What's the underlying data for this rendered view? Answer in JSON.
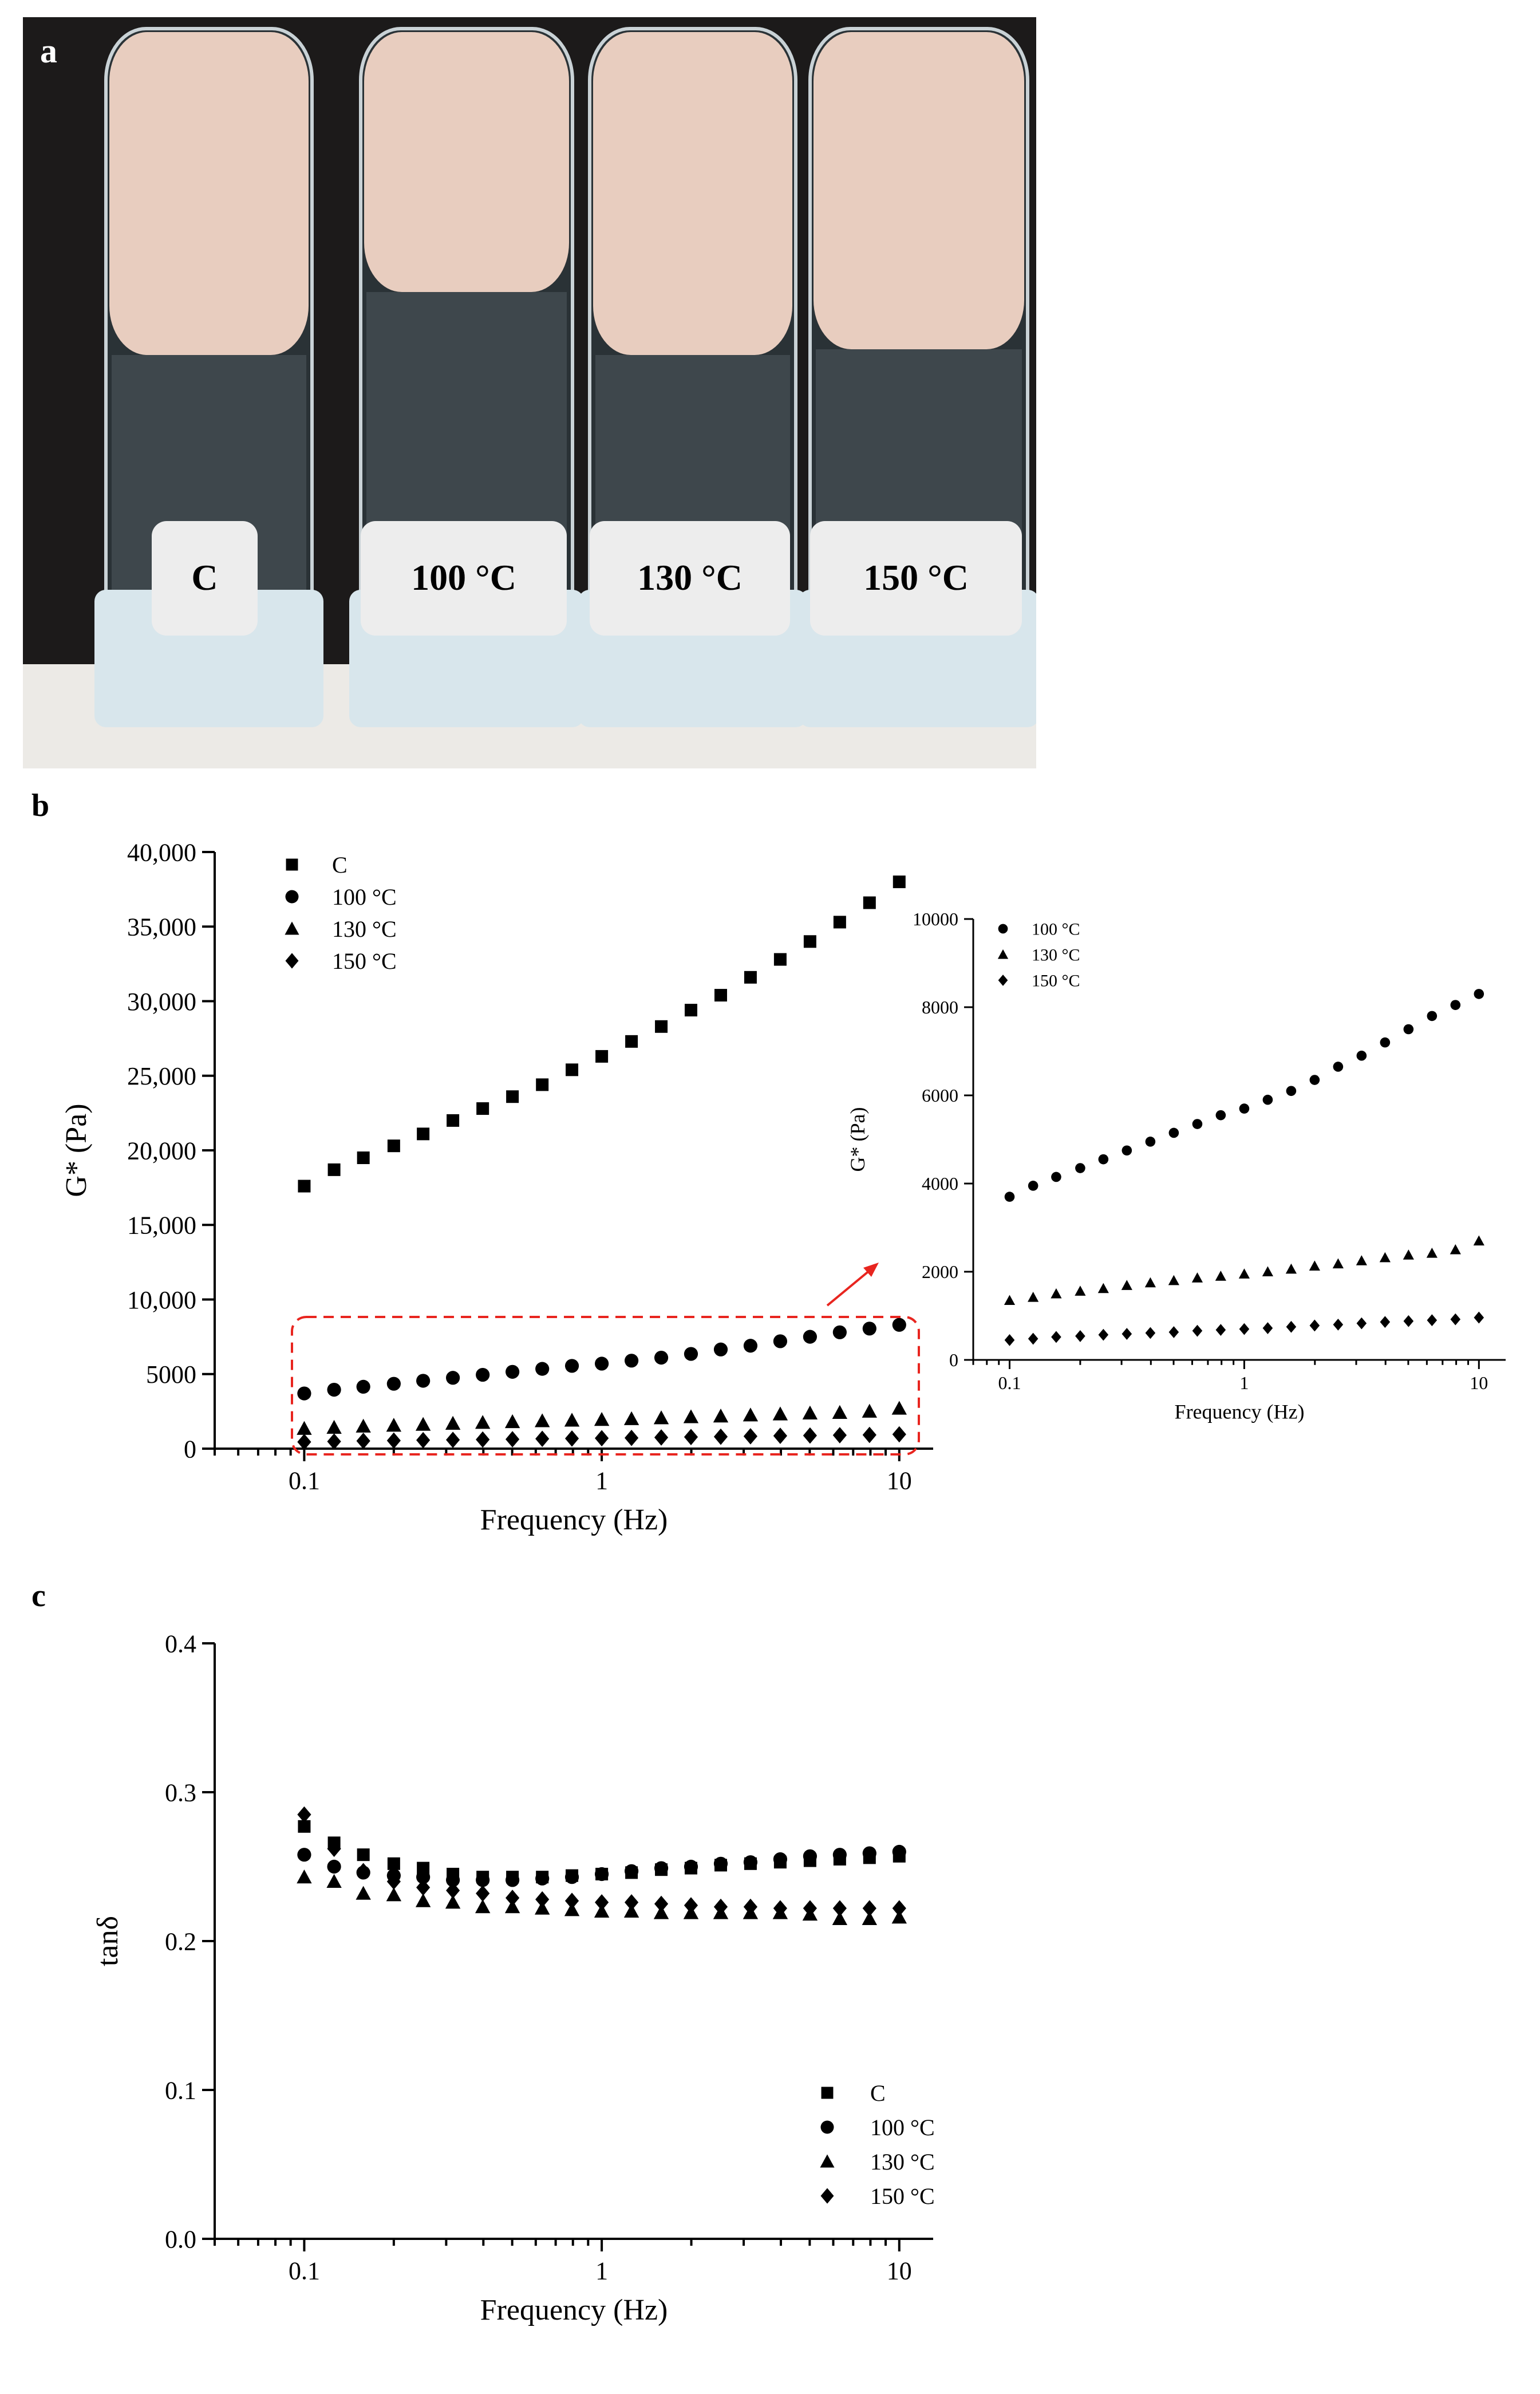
{
  "panels": {
    "a": "a",
    "b": "b",
    "c": "c"
  },
  "photo": {
    "tube_labels": [
      "C",
      "100 °C",
      "130 °C",
      "150 °C"
    ],
    "background": "#1a1a1a",
    "foam_color": "#e8cdbf",
    "cap_color": "#d8e6ec"
  },
  "chart_data": [
    {
      "id": "b-main",
      "type": "scatter",
      "xscale": "log",
      "xlim": [
        0.05,
        13
      ],
      "ylim": [
        0,
        40000
      ],
      "xticks": [
        {
          "v": 0.1,
          "label": "0.1"
        },
        {
          "v": 1,
          "label": "1"
        },
        {
          "v": 10,
          "label": "10"
        }
      ],
      "yticks": [
        {
          "v": 0,
          "label": "0"
        },
        {
          "v": 5000,
          "label": "5000"
        },
        {
          "v": 10000,
          "label": "10,000"
        },
        {
          "v": 15000,
          "label": "15,000"
        },
        {
          "v": 20000,
          "label": "20,000"
        },
        {
          "v": 25000,
          "label": "25,000"
        },
        {
          "v": 30000,
          "label": "30,000"
        },
        {
          "v": 35000,
          "label": "35,000"
        },
        {
          "v": 40000,
          "label": "40,000"
        }
      ],
      "xlabel": "Frequency (Hz)",
      "ylabel": "G* (Pa)",
      "legend_position": "top-left",
      "x": [
        0.1,
        0.126,
        0.158,
        0.2,
        0.251,
        0.316,
        0.398,
        0.501,
        0.631,
        0.794,
        1.0,
        1.259,
        1.585,
        1.995,
        2.512,
        3.162,
        3.981,
        5.012,
        6.31,
        7.943,
        10.0
      ],
      "series": [
        {
          "name": "C",
          "marker": "square",
          "values": [
            17600,
            18700,
            19500,
            20300,
            21100,
            22000,
            22800,
            23600,
            24400,
            25400,
            26300,
            27300,
            28300,
            29400,
            30400,
            31600,
            32800,
            34000,
            35300,
            36600,
            38000
          ]
        },
        {
          "name": "100 °C",
          "marker": "circle",
          "values": [
            3700,
            3950,
            4150,
            4350,
            4550,
            4750,
            4950,
            5150,
            5350,
            5550,
            5700,
            5900,
            6100,
            6350,
            6650,
            6900,
            7200,
            7500,
            7800,
            8050,
            8300
          ]
        },
        {
          "name": "130 °C",
          "marker": "triangle",
          "values": [
            1350,
            1420,
            1500,
            1560,
            1620,
            1690,
            1750,
            1800,
            1860,
            1900,
            1950,
            2000,
            2060,
            2130,
            2180,
            2250,
            2320,
            2380,
            2420,
            2500,
            2700
          ]
        },
        {
          "name": "150 °C",
          "marker": "diamond",
          "values": [
            450,
            480,
            520,
            540,
            570,
            590,
            610,
            630,
            660,
            680,
            700,
            720,
            750,
            780,
            800,
            830,
            860,
            880,
            900,
            920,
            960
          ]
        }
      ]
    },
    {
      "id": "b-inset",
      "type": "scatter",
      "xscale": "log",
      "xlim": [
        0.07,
        13
      ],
      "ylim": [
        0,
        10000
      ],
      "xticks": [
        {
          "v": 0.1,
          "label": "0.1"
        },
        {
          "v": 1,
          "label": "1"
        },
        {
          "v": 10,
          "label": "10"
        }
      ],
      "yticks": [
        {
          "v": 0,
          "label": "0"
        },
        {
          "v": 2000,
          "label": "2000"
        },
        {
          "v": 4000,
          "label": "4000"
        },
        {
          "v": 6000,
          "label": "6000"
        },
        {
          "v": 8000,
          "label": "8000"
        },
        {
          "v": 10000,
          "label": "10000"
        }
      ],
      "xlabel": "Frequency (Hz)",
      "ylabel": "G* (Pa)",
      "legend_position": "top-left",
      "x": [
        0.1,
        0.126,
        0.158,
        0.2,
        0.251,
        0.316,
        0.398,
        0.501,
        0.631,
        0.794,
        1.0,
        1.259,
        1.585,
        1.995,
        2.512,
        3.162,
        3.981,
        5.012,
        6.31,
        7.943,
        10.0
      ],
      "series": [
        {
          "name": "100 °C",
          "marker": "circle",
          "values": [
            3700,
            3950,
            4150,
            4350,
            4550,
            4750,
            4950,
            5150,
            5350,
            5550,
            5700,
            5900,
            6100,
            6350,
            6650,
            6900,
            7200,
            7500,
            7800,
            8050,
            8300
          ]
        },
        {
          "name": "130 °C",
          "marker": "triangle",
          "values": [
            1350,
            1420,
            1500,
            1560,
            1620,
            1690,
            1750,
            1800,
            1860,
            1900,
            1950,
            2000,
            2060,
            2130,
            2180,
            2250,
            2320,
            2380,
            2420,
            2500,
            2700
          ]
        },
        {
          "name": "150 °C",
          "marker": "diamond",
          "values": [
            450,
            480,
            520,
            540,
            570,
            590,
            610,
            630,
            660,
            680,
            700,
            720,
            750,
            780,
            800,
            830,
            860,
            880,
            900,
            920,
            960
          ]
        }
      ]
    },
    {
      "id": "c",
      "type": "scatter",
      "xscale": "log",
      "xlim": [
        0.05,
        13
      ],
      "ylim": [
        0,
        0.4
      ],
      "xticks": [
        {
          "v": 0.1,
          "label": "0.1"
        },
        {
          "v": 1,
          "label": "1"
        },
        {
          "v": 10,
          "label": "10"
        }
      ],
      "yticks": [
        {
          "v": 0,
          "label": "0.0"
        },
        {
          "v": 0.1,
          "label": "0.1"
        },
        {
          "v": 0.2,
          "label": "0.2"
        },
        {
          "v": 0.3,
          "label": "0.3"
        },
        {
          "v": 0.4,
          "label": "0.4"
        }
      ],
      "xlabel": "Frequency (Hz)",
      "ylabel": "tanδ",
      "legend_position": "bottom-right",
      "x": [
        0.1,
        0.126,
        0.158,
        0.2,
        0.251,
        0.316,
        0.398,
        0.501,
        0.631,
        0.794,
        1.0,
        1.259,
        1.585,
        1.995,
        2.512,
        3.162,
        3.981,
        5.012,
        6.31,
        7.943,
        10.0
      ],
      "series": [
        {
          "name": "C",
          "marker": "square",
          "values": [
            0.277,
            0.266,
            0.258,
            0.252,
            0.249,
            0.245,
            0.243,
            0.243,
            0.243,
            0.244,
            0.245,
            0.246,
            0.248,
            0.249,
            0.251,
            0.252,
            0.253,
            0.254,
            0.255,
            0.256,
            0.257
          ]
        },
        {
          "name": "100 °C",
          "marker": "circle",
          "values": [
            0.258,
            0.25,
            0.246,
            0.244,
            0.243,
            0.241,
            0.241,
            0.241,
            0.242,
            0.243,
            0.245,
            0.247,
            0.249,
            0.25,
            0.252,
            0.253,
            0.255,
            0.257,
            0.258,
            0.259,
            0.26
          ]
        },
        {
          "name": "130 °C",
          "marker": "triangle",
          "values": [
            0.243,
            0.24,
            0.232,
            0.231,
            0.227,
            0.226,
            0.223,
            0.223,
            0.222,
            0.221,
            0.22,
            0.22,
            0.219,
            0.219,
            0.219,
            0.219,
            0.219,
            0.218,
            0.215,
            0.215,
            0.216
          ]
        },
        {
          "name": "150 °C",
          "marker": "diamond",
          "values": [
            0.285,
            0.262,
            0.247,
            0.24,
            0.236,
            0.234,
            0.232,
            0.229,
            0.228,
            0.227,
            0.226,
            0.226,
            0.225,
            0.224,
            0.223,
            0.223,
            0.222,
            0.222,
            0.222,
            0.222,
            0.222
          ]
        }
      ]
    }
  ]
}
